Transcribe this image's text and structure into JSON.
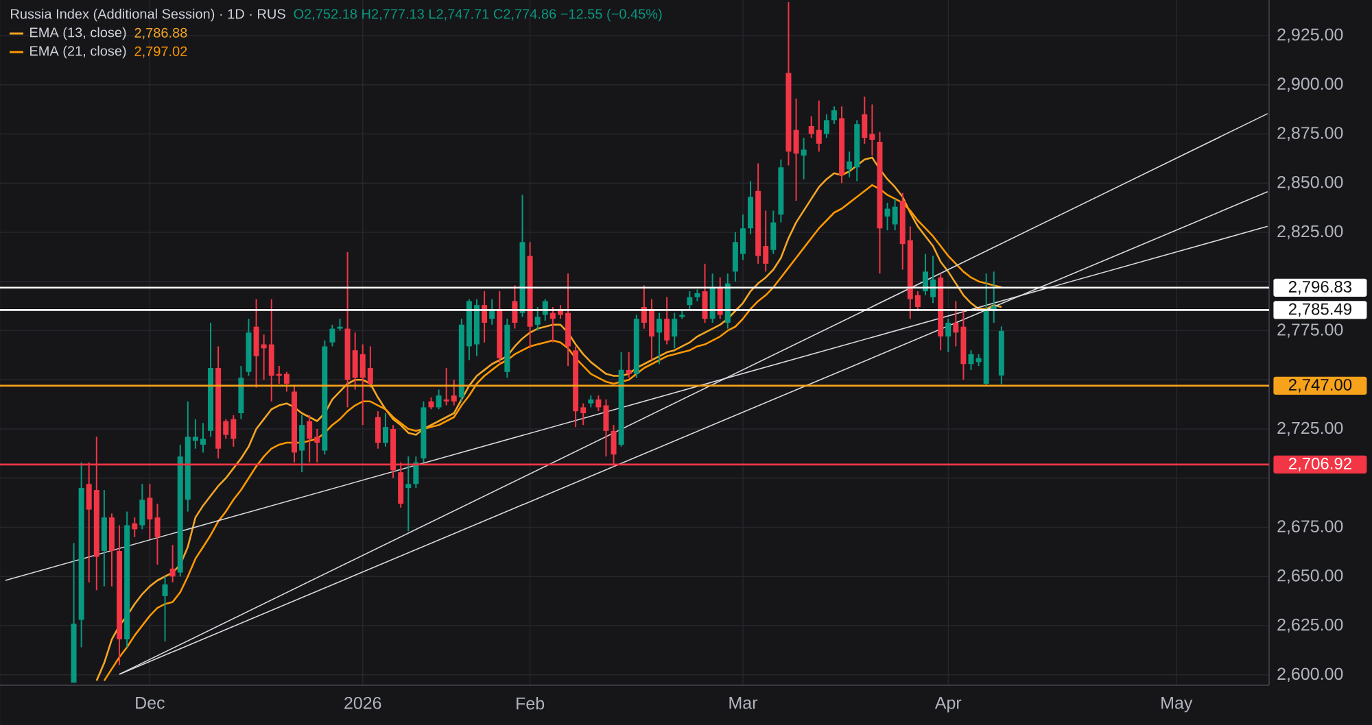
{
  "chart_data": {
    "type": "candlestick",
    "title": "Russia Index (Additional Session) · 1D · RUS",
    "subtitle": "O2,752.18 H2,777.13 L2,747.71 C2,774.86 −12.55 (−0.45%)",
    "categories": [
      null,
      null,
      null,
      null,
      null,
      null,
      null,
      null,
      null,
      null,
      null,
      null,
      null,
      null,
      null,
      null,
      null,
      null,
      null,
      "Dec",
      null,
      null,
      null,
      null,
      null,
      null,
      null,
      null,
      null,
      null,
      null,
      null,
      null,
      null,
      null,
      null,
      null,
      null,
      null,
      null,
      null,
      null,
      null,
      null,
      null,
      null,
      null,
      "2026",
      null,
      null,
      null,
      null,
      null,
      null,
      null,
      null,
      null,
      null,
      null,
      null,
      null,
      null,
      null,
      null,
      null,
      null,
      null,
      null,
      null,
      "Feb",
      null,
      null,
      null,
      null,
      null,
      null,
      null,
      null,
      null,
      null,
      null,
      null,
      null,
      null,
      null,
      null,
      null,
      null,
      null,
      null,
      null,
      null,
      null,
      null,
      null,
      null,
      null,
      "Mar",
      null,
      null,
      null,
      null,
      null,
      null,
      null,
      null,
      null,
      null,
      null,
      null,
      null,
      null,
      null,
      null,
      null,
      null,
      null,
      null,
      null,
      null,
      null,
      null,
      null,
      null,
      "Apr",
      null,
      null,
      null,
      null,
      null,
      null,
      null,
      null,
      null,
      null,
      null,
      null,
      null,
      null,
      null,
      null,
      null,
      null,
      null,
      null,
      null,
      null,
      null,
      null,
      null,
      null,
      null,
      null,
      null,
      "May",
      null,
      null,
      null,
      null,
      null,
      null,
      null,
      null,
      null,
      null,
      null,
      null
    ],
    "ohlc": [
      null,
      null,
      null,
      null,
      null,
      null,
      null,
      null,
      null,
      [
        2596,
        2667,
        2596,
        2626
      ],
      [
        2628,
        2708,
        2614,
        2695
      ],
      [
        2697,
        2708,
        2647,
        2684
      ],
      [
        2694,
        2721,
        2643,
        2660
      ],
      [
        2663,
        2694,
        2645,
        2680
      ],
      [
        2680,
        2682,
        2645,
        2663
      ],
      [
        2663,
        2676,
        2605,
        2618
      ],
      [
        2618,
        2683,
        2614,
        2676
      ],
      [
        2677,
        2680,
        2670,
        2674
      ],
      [
        2676,
        2697,
        2674,
        2689
      ],
      [
        2690,
        2697,
        2669,
        2679
      ],
      [
        2680,
        2687,
        2656,
        2670
      ],
      [
        2640,
        2650,
        2617,
        2646
      ],
      [
        2654,
        2666,
        2647,
        2650
      ],
      [
        2652,
        2717,
        2650,
        2711
      ],
      [
        2689,
        2739,
        2683,
        2721
      ],
      [
        2719,
        2730,
        2715,
        2721
      ],
      [
        2717,
        2728,
        2713,
        2720
      ],
      [
        2724,
        2779,
        2721,
        2756
      ],
      [
        2756,
        2767,
        2710,
        2715
      ],
      [
        2729,
        2730,
        2720,
        2722
      ],
      [
        2730,
        2732,
        2716,
        2720
      ],
      [
        2733,
        2757,
        2730,
        2751
      ],
      [
        2754,
        2781,
        2752,
        2774
      ],
      [
        2777,
        2791,
        2746,
        2762
      ],
      [
        2768,
        2773,
        2750,
        2766
      ],
      [
        2768,
        2791,
        2739,
        2752
      ],
      [
        2753,
        2757,
        2748,
        2752
      ],
      [
        2753,
        2754,
        2744,
        2748
      ],
      [
        2744,
        2747,
        2708,
        2713
      ],
      [
        2714,
        2732,
        2703,
        2727
      ],
      [
        2729,
        2732,
        2708,
        2720
      ],
      [
        2721,
        2725,
        2708,
        2718
      ],
      [
        2714,
        2770,
        2712,
        2767
      ],
      [
        2769,
        2778,
        2767,
        2776
      ],
      [
        2776,
        2781,
        2775,
        2777
      ],
      [
        2776,
        2815,
        2736,
        2750
      ],
      [
        2765,
        2774,
        2745,
        2751
      ],
      [
        2763,
        2768,
        2727,
        2751
      ],
      [
        2756,
        2767,
        2746,
        2748
      ],
      [
        2731,
        2734,
        2715,
        2718
      ],
      [
        2718,
        2733,
        2716,
        2726
      ],
      [
        2725,
        2727,
        2700,
        2704
      ],
      [
        2703,
        2708,
        2685,
        2687
      ],
      [
        2695,
        2711,
        2673,
        2697
      ],
      [
        2697,
        2711,
        2695,
        2708
      ],
      [
        2710,
        2739,
        2708,
        2736
      ],
      [
        2739,
        2741,
        2735,
        2736
      ],
      [
        2736,
        2745,
        2735,
        2742
      ],
      [
        2740,
        2756,
        2737,
        2739
      ],
      [
        2742,
        2750,
        2737,
        2739
      ],
      [
        2741,
        2781,
        2739,
        2778
      ],
      [
        2767,
        2791,
        2760,
        2790
      ],
      [
        2768,
        2791,
        2762,
        2788
      ],
      [
        2788,
        2795,
        2769,
        2779
      ],
      [
        2781,
        2791,
        2778,
        2786
      ],
      [
        2786,
        2795,
        2758,
        2761
      ],
      [
        2754,
        2781,
        2751,
        2778
      ],
      [
        2790,
        2798,
        2776,
        2779
      ],
      [
        2784,
        2844,
        2782,
        2820
      ],
      [
        2813,
        2820,
        2766,
        2777
      ],
      [
        2778,
        2787,
        2775,
        2782
      ],
      [
        2783,
        2791,
        2780,
        2790
      ],
      [
        2784,
        2787,
        2769,
        2781
      ],
      [
        2786,
        2788,
        2781,
        2783
      ],
      [
        2784,
        2804,
        2757,
        2767
      ],
      [
        2765,
        2767,
        2726,
        2734
      ],
      [
        2736,
        2738,
        2727,
        2733
      ],
      [
        2738,
        2742,
        2736,
        2740
      ],
      [
        2740,
        2742,
        2734,
        2736
      ],
      [
        2737,
        2740,
        2711,
        2724
      ],
      [
        2724,
        2727,
        2706,
        2712
      ],
      [
        2717,
        2764,
        2716,
        2755
      ],
      [
        2755,
        2764,
        2751,
        2753
      ],
      [
        2753,
        2783,
        2751,
        2781
      ],
      [
        2787,
        2798,
        2776,
        2779
      ],
      [
        2786,
        2791,
        2760,
        2772
      ],
      [
        2774,
        2784,
        2758,
        2781
      ],
      [
        2781,
        2792,
        2768,
        2770
      ],
      [
        2772,
        2784,
        2766,
        2781
      ],
      [
        2782,
        2785,
        2781,
        2783
      ],
      [
        2788,
        2795,
        2786,
        2792
      ],
      [
        2792,
        2796,
        2790,
        2794
      ],
      [
        2795,
        2809,
        2779,
        2781
      ],
      [
        2781,
        2804,
        2779,
        2797
      ],
      [
        2797,
        2802,
        2781,
        2783
      ],
      [
        2779,
        2804,
        2776,
        2799
      ],
      [
        2805,
        2825,
        2800,
        2820
      ],
      [
        2814,
        2834,
        2811,
        2827
      ],
      [
        2827,
        2851,
        2824,
        2843
      ],
      [
        2846,
        2860,
        2809,
        2813
      ],
      [
        2818,
        2836,
        2805,
        2809
      ],
      [
        2816,
        2836,
        2814,
        2830
      ],
      [
        2834,
        2862,
        2830,
        2858
      ],
      [
        2906,
        2942,
        2859,
        2866
      ],
      [
        2877,
        2893,
        2841,
        2865
      ],
      [
        2864,
        2873,
        2852,
        2867
      ],
      [
        2879,
        2884,
        2873,
        2875
      ],
      [
        2877,
        2892,
        2866,
        2870
      ],
      [
        2875,
        2885,
        2873,
        2882
      ],
      [
        2882,
        2889,
        2880,
        2887
      ],
      [
        2883,
        2889,
        2850,
        2854
      ],
      [
        2857,
        2866,
        2853,
        2861
      ],
      [
        2858,
        2882,
        2851,
        2880
      ],
      [
        2885,
        2894,
        2870,
        2873
      ],
      [
        2875,
        2890,
        2864,
        2872
      ],
      [
        2871,
        2876,
        2804,
        2827
      ],
      [
        2833,
        2840,
        2826,
        2837
      ],
      [
        2829,
        2842,
        2826,
        2838
      ],
      [
        2841,
        2845,
        2806,
        2819
      ],
      [
        2821,
        2828,
        2781,
        2791
      ],
      [
        2793,
        2795,
        2785,
        2787
      ],
      [
        2795,
        2814,
        2793,
        2805
      ],
      [
        2792,
        2813,
        2789,
        2801
      ],
      [
        2802,
        2804,
        2765,
        2772
      ],
      [
        2772,
        2781,
        2764,
        2779
      ],
      [
        2779,
        2790,
        2767,
        2774
      ],
      [
        2777,
        2786,
        2750,
        2758
      ],
      [
        2758,
        2765,
        2755,
        2763
      ],
      [
        2759,
        2763,
        2757,
        2761
      ],
      [
        2748,
        2804,
        2747,
        2785
      ],
      [
        2785,
        2805,
        2779,
        2787.41
      ],
      [
        2752.18,
        2777.13,
        2747.71,
        2774.86
      ],
      null,
      null,
      null,
      null,
      null,
      null,
      null,
      null,
      null,
      null,
      null,
      null,
      null,
      null,
      null,
      null,
      null,
      null,
      null,
      null,
      null,
      null,
      null,
      null,
      null,
      null,
      null,
      null,
      null,
      null,
      null,
      null,
      null,
      null,
      null
    ],
    "colors": [
      null,
      null,
      null,
      null,
      null,
      null,
      null,
      null,
      null,
      "#089981",
      "#089981",
      "#f23645",
      "#f23645",
      "#089981",
      "#f23645",
      "#f23645",
      "#089981",
      "#f23645",
      "#089981",
      "#f23645",
      "#f23645",
      "#089981",
      "#f23645",
      "#089981",
      "#089981",
      "#089981",
      "#089981",
      "#089981",
      "#f23645",
      "#f23645",
      "#f23645",
      "#089981",
      "#089981",
      "#f23645",
      "#f23645",
      "#f23645",
      "#f23645",
      "#f23645",
      "#f23645",
      "#089981",
      "#f23645",
      "#f23645",
      "#089981",
      "#089981",
      "#089981",
      "#f23645",
      "#f23645",
      "#f23645",
      "#f23645",
      "#f23645",
      "#089981",
      "#f23645",
      "#f23645",
      "#089981",
      "#089981",
      "#089981",
      "#f23645",
      "#089981",
      "#f23645",
      "#f23645",
      "#089981",
      "#089981",
      "#089981",
      "#f23645",
      "#089981",
      "#f23645",
      "#089981",
      "#f23645",
      "#089981",
      "#f23645",
      "#089981",
      "#089981",
      "#f23645",
      "#f23645",
      "#f23645",
      "#f23645",
      "#f23645",
      "#089981",
      "#f23645",
      "#f23645",
      "#f23645",
      "#089981",
      "#f23645",
      "#089981",
      "#f23645",
      "#f23645",
      "#089981",
      "#f23645",
      "#089981",
      "#089981",
      "#089981",
      "#089981",
      "#f23645",
      "#089981",
      "#f23645",
      "#089981",
      "#089981",
      "#089981",
      "#089981",
      "#f23645",
      "#f23645",
      "#089981",
      "#089981",
      "#f23645",
      "#f23645",
      "#089981",
      "#f23645",
      "#f23645",
      "#089981",
      "#089981",
      "#f23645",
      "#089981",
      "#089981",
      "#f23645",
      "#f23645",
      "#f23645",
      "#089981",
      "#089981",
      "#f23645",
      "#f23645",
      "#f23645",
      "#089981",
      "#089981",
      "#f23645",
      "#089981",
      "#f23645",
      "#f23645",
      "#089981",
      "#089981",
      "#089981",
      "#089981",
      "#089981",
      null,
      null,
      null,
      null,
      null,
      null,
      null,
      null,
      null,
      null,
      null,
      null,
      null,
      null,
      null,
      null,
      null,
      null,
      null,
      null,
      null,
      null,
      null,
      null,
      null,
      null,
      null,
      null,
      null,
      null,
      null,
      null,
      null,
      null,
      null
    ],
    "series": [
      {
        "type": "line",
        "name": "EMA (13, close)",
        "color": "#f5a623",
        "values": [
          null,
          null,
          null,
          null,
          null,
          null,
          null,
          null,
          null,
          null,
          null,
          null,
          2597,
          2606,
          2618,
          2625,
          2630,
          2636,
          2641,
          2645,
          2648,
          2650,
          2652,
          2656,
          2665,
          2680,
          2686,
          2691,
          2696,
          2700,
          2705,
          2710,
          2716,
          2725,
          2730,
          2735,
          2737,
          2738,
          2736,
          2733,
          2731,
          2729,
          2733,
          2740,
          2744,
          2748,
          2750,
          2750,
          2748,
          2741,
          2735,
          2730,
          2727,
          2723,
          2722,
          2725,
          2727,
          2729,
          2731,
          2733,
          2740,
          2747,
          2752,
          2755,
          2758,
          2760,
          2762,
          2767,
          2771,
          2774,
          2776,
          2777,
          2778,
          2778,
          2774,
          2768,
          2763,
          2759,
          2756,
          2753,
          2752,
          2752,
          2753,
          2756,
          2758,
          2760,
          2762,
          2764,
          2765,
          2767,
          2769,
          2772,
          2774,
          2776,
          2778,
          2781,
          2785,
          2789,
          2795,
          2799,
          2802,
          2806,
          2812,
          2822,
          2830,
          2836,
          2842,
          2848,
          2852,
          2855,
          2854,
          2856,
          2859,
          2862,
          2863,
          2857,
          2852,
          2848,
          2843,
          2835,
          2828,
          2823,
          2818,
          2810,
          2805,
          2799,
          2793,
          2789,
          2786,
          2786,
          2788,
          2787,
          null,
          null,
          null,
          null,
          null,
          null,
          null,
          null,
          null,
          null,
          null,
          null,
          null,
          null,
          null,
          null,
          null,
          null,
          null,
          null,
          null,
          null,
          null,
          null,
          null,
          null,
          null,
          null,
          null,
          null,
          null,
          null,
          null,
          null,
          null
        ]
      },
      {
        "type": "line",
        "name": "EMA (21, close)",
        "color": "#ff9800",
        "values": [
          null,
          null,
          null,
          null,
          null,
          null,
          null,
          null,
          null,
          null,
          null,
          null,
          null,
          2597,
          2603,
          2609,
          2614,
          2620,
          2625,
          2630,
          2634,
          2636,
          2637,
          2642,
          2650,
          2659,
          2665,
          2671,
          2678,
          2683,
          2689,
          2694,
          2700,
          2706,
          2711,
          2715,
          2717,
          2718,
          2718,
          2718,
          2719,
          2720,
          2723,
          2727,
          2730,
          2734,
          2737,
          2739,
          2739,
          2737,
          2735,
          2731,
          2728,
          2725,
          2724,
          2725,
          2726,
          2727,
          2729,
          2731,
          2737,
          2742,
          2748,
          2752,
          2755,
          2758,
          2760,
          2763,
          2765,
          2767,
          2768,
          2769,
          2770,
          2769,
          2766,
          2761,
          2757,
          2753,
          2751,
          2749,
          2748,
          2749,
          2750,
          2753,
          2756,
          2758,
          2760,
          2762,
          2763,
          2764,
          2765,
          2767,
          2768,
          2770,
          2772,
          2775,
          2777,
          2781,
          2786,
          2790,
          2793,
          2797,
          2802,
          2807,
          2812,
          2817,
          2822,
          2827,
          2831,
          2835,
          2837,
          2840,
          2843,
          2846,
          2849,
          2847,
          2844,
          2842,
          2840,
          2836,
          2831,
          2827,
          2823,
          2818,
          2813,
          2809,
          2805,
          2802,
          2800,
          2799,
          2798,
          2797,
          null,
          null,
          null,
          null,
          null,
          null,
          null,
          null,
          null,
          null,
          null,
          null,
          null,
          null,
          null,
          null,
          null,
          null,
          null,
          null,
          null,
          null,
          null,
          null,
          null,
          null,
          null,
          null,
          null,
          null,
          null,
          null,
          null,
          null,
          null
        ]
      },
      {
        "type": "line",
        "color": "#d9d9de",
        "values": [
          2648,
          null,
          null,
          null,
          null,
          null,
          null,
          null,
          null,
          null,
          null,
          null,
          null,
          null,
          null,
          null,
          null,
          null,
          null,
          null,
          null,
          null,
          null,
          null,
          null,
          null,
          null,
          null,
          null,
          null,
          null,
          null,
          null,
          null,
          null,
          null,
          null,
          null,
          null,
          null,
          null,
          null,
          null,
          null,
          null,
          null,
          null,
          null,
          null,
          null,
          null,
          null,
          null,
          null,
          null,
          null,
          null,
          null,
          null,
          null,
          null,
          null,
          null,
          null,
          null,
          null,
          null,
          null,
          null,
          null,
          null,
          null,
          null,
          null,
          null,
          null,
          null,
          null,
          null,
          null,
          null,
          null,
          null,
          null,
          null,
          null,
          null,
          null,
          null,
          null,
          null,
          null,
          null,
          null,
          null,
          null,
          null,
          null,
          null,
          null,
          null,
          null,
          null,
          null,
          null,
          null,
          null,
          null,
          null,
          null,
          null,
          null,
          null,
          null,
          null,
          null,
          null,
          null,
          null,
          null,
          null,
          null,
          null,
          null,
          null,
          null,
          null,
          null,
          null,
          null,
          null,
          null,
          null,
          null,
          null,
          null,
          null,
          null,
          null,
          null,
          null,
          null,
          null,
          null,
          null,
          null,
          null,
          null,
          null,
          null,
          null,
          null,
          null,
          null,
          null,
          null,
          null,
          null,
          null,
          null,
          null,
          null,
          null,
          null,
          null,
          null,
          2828
        ]
      },
      {
        "type": "line",
        "color": "#d9d9de",
        "values": [
          null,
          null,
          null,
          null,
          null,
          null,
          null,
          null,
          null,
          null,
          null,
          null,
          null,
          null,
          null,
          2600.3,
          null,
          null,
          null,
          null,
          null,
          null,
          null,
          null,
          null,
          null,
          null,
          null,
          null,
          null,
          null,
          null,
          null,
          null,
          null,
          null,
          null,
          null,
          null,
          null,
          null,
          null,
          null,
          null,
          null,
          null,
          null,
          null,
          null,
          null,
          null,
          null,
          null,
          null,
          null,
          null,
          null,
          null,
          null,
          null,
          null,
          null,
          null,
          null,
          null,
          null,
          null,
          null,
          null,
          null,
          null,
          null,
          null,
          null,
          null,
          null,
          null,
          null,
          null,
          null,
          null,
          null,
          null,
          null,
          null,
          null,
          null,
          null,
          null,
          null,
          null,
          null,
          null,
          null,
          null,
          null,
          null,
          null,
          null,
          null,
          null,
          null,
          null,
          null,
          null,
          null,
          null,
          null,
          null,
          null,
          null,
          null,
          null,
          null,
          null,
          null,
          null,
          null,
          null,
          null,
          null,
          null,
          null,
          null,
          null,
          null,
          null,
          null,
          null,
          null,
          null,
          null,
          null,
          null,
          null,
          null,
          null,
          null,
          null,
          null,
          null,
          null,
          null,
          null,
          null,
          null,
          null,
          null,
          null,
          null,
          null,
          null,
          null,
          null,
          null,
          null,
          null,
          null,
          null,
          null,
          null,
          null,
          null,
          null,
          null,
          null,
          2885.3
        ]
      },
      {
        "type": "line",
        "color": "#d9d9de",
        "values": [
          null,
          null,
          null,
          null,
          null,
          null,
          null,
          null,
          null,
          null,
          null,
          null,
          null,
          null,
          null,
          2600.3,
          null,
          null,
          null,
          null,
          null,
          null,
          null,
          null,
          null,
          null,
          null,
          null,
          null,
          null,
          null,
          null,
          null,
          null,
          null,
          null,
          null,
          null,
          null,
          null,
          null,
          null,
          null,
          null,
          null,
          null,
          null,
          null,
          null,
          null,
          null,
          null,
          null,
          null,
          null,
          null,
          null,
          null,
          null,
          null,
          null,
          null,
          null,
          null,
          null,
          null,
          null,
          null,
          null,
          null,
          null,
          null,
          null,
          null,
          null,
          null,
          null,
          null,
          null,
          null,
          null,
          null,
          null,
          null,
          null,
          null,
          null,
          null,
          null,
          null,
          null,
          null,
          null,
          null,
          null,
          null,
          null,
          null,
          null,
          null,
          null,
          null,
          null,
          null,
          null,
          null,
          null,
          null,
          null,
          null,
          null,
          null,
          null,
          null,
          null,
          null,
          null,
          null,
          null,
          null,
          null,
          null,
          null,
          null,
          null,
          null,
          null,
          null,
          null,
          null,
          null,
          null,
          null,
          null,
          null,
          null,
          null,
          null,
          null,
          null,
          null,
          null,
          null,
          null,
          null,
          null,
          null,
          null,
          null,
          null,
          null,
          null,
          null,
          null,
          null,
          null,
          null,
          null,
          null,
          null,
          null,
          null,
          null,
          null,
          null,
          null,
          2845.6
        ]
      }
    ],
    "annotations": [
      "2,786.88",
      "2,797.02"
    ],
    "ref_lines": [
      {
        "axis": "y",
        "value": 2796.83,
        "label": "2,796.83",
        "color": "#ffffff"
      },
      {
        "axis": "y",
        "value": 2785.49,
        "label": "2,785.49",
        "color": "#ffffff"
      },
      {
        "axis": "y",
        "value": 2747.0,
        "label": "2,747.00",
        "color": "#f7a21b"
      },
      {
        "axis": "y",
        "value": 2706.92,
        "label": "2,706.92",
        "color": "#f23645"
      }
    ],
    "ylim": [
      2594.7,
      2943.1
    ],
    "yticks": [
      {
        "value": 2600,
        "label": "2,600.00"
      },
      {
        "value": 2625,
        "label": "2,625.00"
      },
      {
        "value": 2650,
        "label": "2,650.00"
      },
      {
        "value": 2675,
        "label": "2,675.00"
      },
      {
        "value": 2700,
        "label": null
      },
      {
        "value": 2725,
        "label": "2,725.00"
      },
      {
        "value": 2750,
        "label": null
      },
      {
        "value": 2775,
        "label": "2,775.00"
      },
      {
        "value": 2800,
        "label": null
      },
      {
        "value": 2825,
        "label": "2,825.00"
      },
      {
        "value": 2850,
        "label": "2,850.00"
      },
      {
        "value": 2875,
        "label": "2,875.00"
      },
      {
        "value": 2900,
        "label": "2,900.00"
      },
      {
        "value": 2925,
        "label": "2,925.00"
      }
    ],
    "grid": true,
    "legend": "top left"
  }
}
